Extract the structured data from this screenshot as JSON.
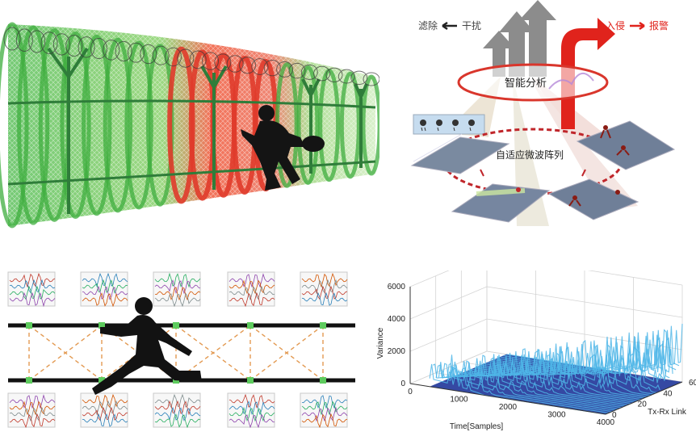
{
  "fence_panel": {
    "zone_colors": {
      "normal": "#3fae3f",
      "alarm": "#e03b2b",
      "fence": "#2f7d3a"
    }
  },
  "system_panel": {
    "filter_label": "滤除",
    "interference_label": "干扰",
    "intrusion_label": "入侵",
    "alarm_label": "报警",
    "analysis_label": "智能分析",
    "array_label": "自适应微波阵列",
    "colors": {
      "alarm": "#e0231c",
      "filter": "#8a8a8a",
      "ellipse": "#d9362c"
    }
  },
  "link_panel": {
    "colors": {
      "rail": "#111111",
      "node": "#5ecb5e",
      "link": "#e39a52"
    },
    "top_signal_count": 5,
    "bottom_signal_count": 5
  },
  "chart_data": {
    "type": "surface",
    "title": "",
    "xlabel": "Time[Samples]",
    "ylabel": "Tx-Rx Link",
    "zlabel": "Variance",
    "x_ticks": [
      "0",
      "1000",
      "2000",
      "3000",
      "4000"
    ],
    "y_ticks": [
      "0",
      "20",
      "40",
      "60"
    ],
    "z_ticks": [
      "0",
      "2000",
      "4000",
      "6000"
    ],
    "xlim": [
      0,
      4000
    ],
    "ylim": [
      0,
      60
    ],
    "zlim": [
      0,
      6000
    ],
    "baseline_color": "#2a3f9e",
    "peak_color": "#4fb6e8",
    "grid": true
  }
}
